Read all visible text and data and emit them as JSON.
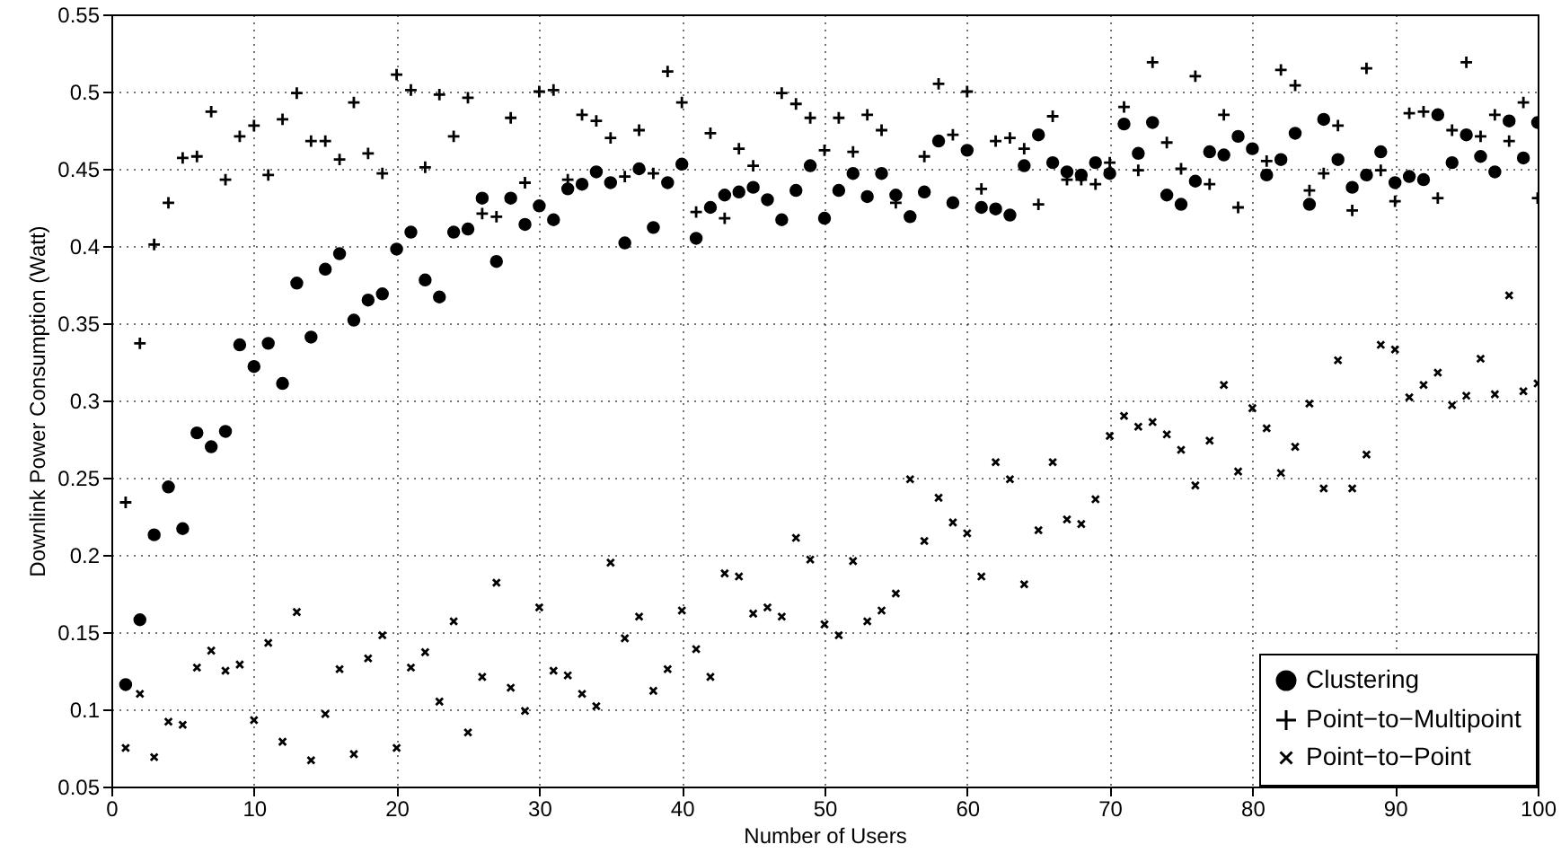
{
  "chart_data": {
    "type": "scatter",
    "xlabel": "Number of Users",
    "ylabel": "Downlink Power Consumption (Watt)",
    "x": [
      1,
      2,
      3,
      4,
      5,
      6,
      7,
      8,
      9,
      10,
      11,
      12,
      13,
      14,
      15,
      16,
      17,
      18,
      19,
      20,
      21,
      22,
      23,
      24,
      25,
      26,
      27,
      28,
      29,
      30,
      31,
      32,
      33,
      34,
      35,
      36,
      37,
      38,
      39,
      40,
      41,
      42,
      43,
      44,
      45,
      46,
      47,
      48,
      49,
      50,
      51,
      52,
      53,
      54,
      55,
      56,
      57,
      58,
      59,
      60,
      61,
      62,
      63,
      64,
      65,
      66,
      67,
      68,
      69,
      70,
      71,
      72,
      73,
      74,
      75,
      76,
      77,
      78,
      79,
      80,
      81,
      82,
      83,
      84,
      85,
      86,
      87,
      88,
      89,
      90,
      91,
      92,
      93,
      94,
      95,
      96,
      97,
      98,
      99,
      100
    ],
    "series": [
      {
        "name": "Clustering",
        "color": "#000000",
        "marker": "circle",
        "values": [
          0.116,
          0.158,
          0.213,
          0.244,
          0.217,
          0.279,
          0.27,
          0.28,
          0.336,
          0.322,
          0.337,
          0.311,
          0.376,
          0.341,
          0.385,
          0.395,
          0.352,
          0.365,
          0.369,
          0.398,
          0.409,
          0.378,
          0.367,
          0.409,
          0.411,
          0.431,
          0.39,
          0.431,
          0.414,
          0.426,
          0.417,
          0.437,
          0.44,
          0.448,
          0.441,
          0.402,
          0.45,
          0.412,
          0.441,
          0.453,
          0.405,
          0.425,
          0.433,
          0.435,
          0.438,
          0.43,
          0.417,
          0.436,
          0.452,
          0.418,
          0.436,
          0.447,
          0.432,
          0.447,
          0.433,
          0.419,
          0.435,
          0.468,
          0.428,
          0.462,
          0.425,
          0.424,
          0.42,
          0.452,
          0.472,
          0.454,
          0.448,
          0.446,
          0.454,
          0.447,
          0.479,
          0.46,
          0.48,
          0.433,
          0.427,
          0.442,
          0.461,
          0.459,
          0.471,
          0.463,
          0.446,
          0.456,
          0.473,
          0.427,
          0.482,
          0.456,
          0.438,
          0.446,
          0.461,
          0.441,
          0.445,
          0.443,
          0.485,
          0.454,
          0.472,
          0.458,
          0.448,
          0.481,
          0.457,
          0.48
        ]
      },
      {
        "name": "Point−to−Multipoint",
        "color": "#000000",
        "marker": "plus",
        "values": [
          0.234,
          0.337,
          0.401,
          0.428,
          0.457,
          0.458,
          0.487,
          0.443,
          0.471,
          0.478,
          0.446,
          0.482,
          0.499,
          0.468,
          0.468,
          0.456,
          0.493,
          0.46,
          0.447,
          0.511,
          0.501,
          0.451,
          0.498,
          0.471,
          0.496,
          0.421,
          0.419,
          0.483,
          0.441,
          0.5,
          0.501,
          0.443,
          0.485,
          0.481,
          0.47,
          0.445,
          0.475,
          0.447,
          0.513,
          0.493,
          0.422,
          0.473,
          0.418,
          0.463,
          0.452,
          null,
          0.499,
          0.492,
          0.483,
          0.462,
          0.483,
          0.461,
          0.485,
          0.475,
          0.428,
          null,
          0.458,
          0.505,
          0.472,
          0.5,
          0.437,
          0.468,
          0.47,
          0.463,
          0.427,
          0.484,
          0.443,
          0.443,
          0.44,
          0.454,
          0.49,
          0.449,
          0.519,
          0.467,
          0.45,
          0.51,
          0.44,
          0.485,
          0.425,
          null,
          0.455,
          0.514,
          0.504,
          0.436,
          0.447,
          0.478,
          0.423,
          0.515,
          0.449,
          0.429,
          0.486,
          0.487,
          0.431,
          0.475,
          0.519,
          0.471,
          0.485,
          0.468,
          0.493,
          0.431
        ]
      },
      {
        "name": "Point−to−Point",
        "color": "#000000",
        "marker": "cross",
        "values": [
          0.075,
          0.11,
          0.069,
          0.092,
          0.09,
          0.127,
          0.138,
          0.125,
          0.129,
          0.093,
          0.143,
          0.079,
          0.163,
          0.067,
          0.097,
          0.126,
          0.071,
          0.133,
          0.148,
          0.075,
          0.127,
          0.137,
          0.105,
          0.157,
          0.085,
          0.121,
          0.182,
          0.114,
          0.099,
          0.166,
          0.125,
          0.122,
          0.11,
          0.102,
          0.195,
          0.146,
          0.16,
          0.112,
          0.126,
          0.164,
          0.139,
          0.121,
          0.188,
          0.186,
          0.162,
          0.166,
          0.16,
          0.211,
          0.197,
          0.155,
          0.148,
          0.196,
          0.157,
          0.164,
          0.175,
          0.249,
          0.209,
          0.237,
          0.221,
          0.214,
          0.186,
          0.26,
          0.249,
          0.181,
          0.216,
          0.26,
          0.223,
          0.22,
          0.236,
          0.277,
          0.29,
          0.283,
          0.286,
          0.278,
          0.268,
          0.245,
          0.274,
          0.31,
          0.254,
          0.295,
          0.282,
          0.253,
          0.27,
          0.298,
          0.243,
          0.326,
          0.243,
          0.265,
          0.336,
          0.333,
          0.302,
          0.31,
          0.318,
          0.297,
          0.303,
          0.327,
          0.304,
          0.368,
          0.306,
          0.311
        ]
      }
    ],
    "xlim": [
      0,
      100
    ],
    "xticks": [
      0,
      10,
      20,
      30,
      40,
      50,
      60,
      70,
      80,
      90,
      100
    ],
    "ylim": [
      0.05,
      0.55
    ],
    "yticks": [
      0.05,
      0.1,
      0.15,
      0.2,
      0.25,
      0.3,
      0.35,
      0.4,
      0.45,
      0.5,
      0.55
    ],
    "grid": true,
    "legend": "bottom right"
  }
}
